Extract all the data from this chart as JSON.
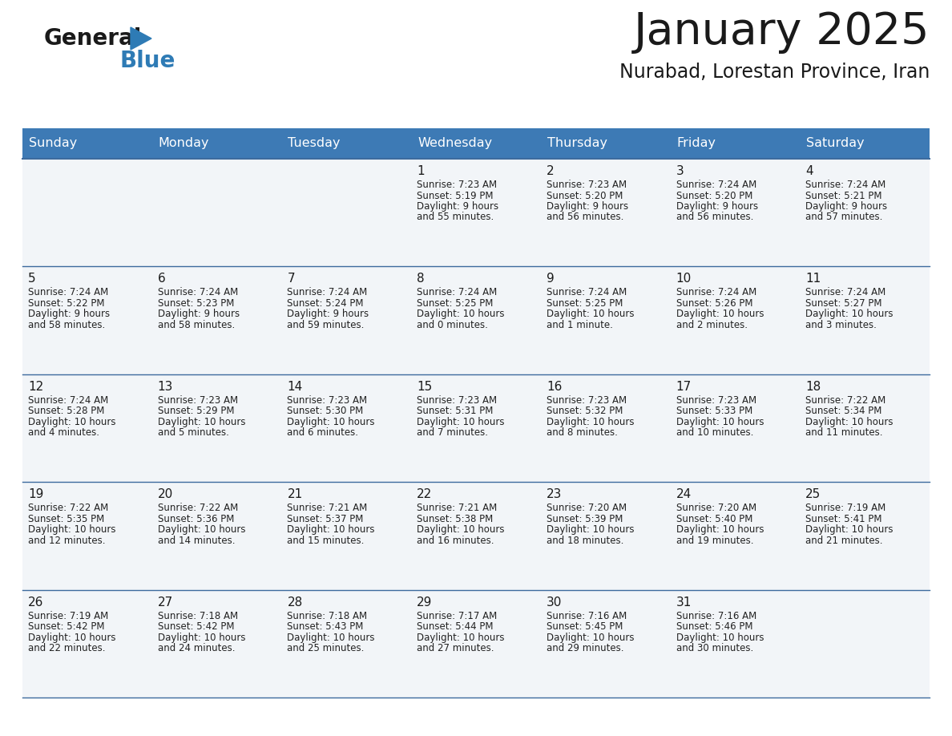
{
  "title": "January 2025",
  "subtitle": "Nurabad, Lorestan Province, Iran",
  "header_color": "#3d7ab5",
  "header_text_color": "#ffffff",
  "cell_bg": "#f2f5f8",
  "grid_line_color": "#3d6b9e",
  "day_headers": [
    "Sunday",
    "Monday",
    "Tuesday",
    "Wednesday",
    "Thursday",
    "Friday",
    "Saturday"
  ],
  "days": [
    {
      "day": 1,
      "col": 3,
      "row": 0,
      "sunrise": "7:23 AM",
      "sunset": "5:19 PM",
      "daylight": "9 hours\nand 55 minutes."
    },
    {
      "day": 2,
      "col": 4,
      "row": 0,
      "sunrise": "7:23 AM",
      "sunset": "5:20 PM",
      "daylight": "9 hours\nand 56 minutes."
    },
    {
      "day": 3,
      "col": 5,
      "row": 0,
      "sunrise": "7:24 AM",
      "sunset": "5:20 PM",
      "daylight": "9 hours\nand 56 minutes."
    },
    {
      "day": 4,
      "col": 6,
      "row": 0,
      "sunrise": "7:24 AM",
      "sunset": "5:21 PM",
      "daylight": "9 hours\nand 57 minutes."
    },
    {
      "day": 5,
      "col": 0,
      "row": 1,
      "sunrise": "7:24 AM",
      "sunset": "5:22 PM",
      "daylight": "9 hours\nand 58 minutes."
    },
    {
      "day": 6,
      "col": 1,
      "row": 1,
      "sunrise": "7:24 AM",
      "sunset": "5:23 PM",
      "daylight": "9 hours\nand 58 minutes."
    },
    {
      "day": 7,
      "col": 2,
      "row": 1,
      "sunrise": "7:24 AM",
      "sunset": "5:24 PM",
      "daylight": "9 hours\nand 59 minutes."
    },
    {
      "day": 8,
      "col": 3,
      "row": 1,
      "sunrise": "7:24 AM",
      "sunset": "5:25 PM",
      "daylight": "10 hours\nand 0 minutes."
    },
    {
      "day": 9,
      "col": 4,
      "row": 1,
      "sunrise": "7:24 AM",
      "sunset": "5:25 PM",
      "daylight": "10 hours\nand 1 minute."
    },
    {
      "day": 10,
      "col": 5,
      "row": 1,
      "sunrise": "7:24 AM",
      "sunset": "5:26 PM",
      "daylight": "10 hours\nand 2 minutes."
    },
    {
      "day": 11,
      "col": 6,
      "row": 1,
      "sunrise": "7:24 AM",
      "sunset": "5:27 PM",
      "daylight": "10 hours\nand 3 minutes."
    },
    {
      "day": 12,
      "col": 0,
      "row": 2,
      "sunrise": "7:24 AM",
      "sunset": "5:28 PM",
      "daylight": "10 hours\nand 4 minutes."
    },
    {
      "day": 13,
      "col": 1,
      "row": 2,
      "sunrise": "7:23 AM",
      "sunset": "5:29 PM",
      "daylight": "10 hours\nand 5 minutes."
    },
    {
      "day": 14,
      "col": 2,
      "row": 2,
      "sunrise": "7:23 AM",
      "sunset": "5:30 PM",
      "daylight": "10 hours\nand 6 minutes."
    },
    {
      "day": 15,
      "col": 3,
      "row": 2,
      "sunrise": "7:23 AM",
      "sunset": "5:31 PM",
      "daylight": "10 hours\nand 7 minutes."
    },
    {
      "day": 16,
      "col": 4,
      "row": 2,
      "sunrise": "7:23 AM",
      "sunset": "5:32 PM",
      "daylight": "10 hours\nand 8 minutes."
    },
    {
      "day": 17,
      "col": 5,
      "row": 2,
      "sunrise": "7:23 AM",
      "sunset": "5:33 PM",
      "daylight": "10 hours\nand 10 minutes."
    },
    {
      "day": 18,
      "col": 6,
      "row": 2,
      "sunrise": "7:22 AM",
      "sunset": "5:34 PM",
      "daylight": "10 hours\nand 11 minutes."
    },
    {
      "day": 19,
      "col": 0,
      "row": 3,
      "sunrise": "7:22 AM",
      "sunset": "5:35 PM",
      "daylight": "10 hours\nand 12 minutes."
    },
    {
      "day": 20,
      "col": 1,
      "row": 3,
      "sunrise": "7:22 AM",
      "sunset": "5:36 PM",
      "daylight": "10 hours\nand 14 minutes."
    },
    {
      "day": 21,
      "col": 2,
      "row": 3,
      "sunrise": "7:21 AM",
      "sunset": "5:37 PM",
      "daylight": "10 hours\nand 15 minutes."
    },
    {
      "day": 22,
      "col": 3,
      "row": 3,
      "sunrise": "7:21 AM",
      "sunset": "5:38 PM",
      "daylight": "10 hours\nand 16 minutes."
    },
    {
      "day": 23,
      "col": 4,
      "row": 3,
      "sunrise": "7:20 AM",
      "sunset": "5:39 PM",
      "daylight": "10 hours\nand 18 minutes."
    },
    {
      "day": 24,
      "col": 5,
      "row": 3,
      "sunrise": "7:20 AM",
      "sunset": "5:40 PM",
      "daylight": "10 hours\nand 19 minutes."
    },
    {
      "day": 25,
      "col": 6,
      "row": 3,
      "sunrise": "7:19 AM",
      "sunset": "5:41 PM",
      "daylight": "10 hours\nand 21 minutes."
    },
    {
      "day": 26,
      "col": 0,
      "row": 4,
      "sunrise": "7:19 AM",
      "sunset": "5:42 PM",
      "daylight": "10 hours\nand 22 minutes."
    },
    {
      "day": 27,
      "col": 1,
      "row": 4,
      "sunrise": "7:18 AM",
      "sunset": "5:42 PM",
      "daylight": "10 hours\nand 24 minutes."
    },
    {
      "day": 28,
      "col": 2,
      "row": 4,
      "sunrise": "7:18 AM",
      "sunset": "5:43 PM",
      "daylight": "10 hours\nand 25 minutes."
    },
    {
      "day": 29,
      "col": 3,
      "row": 4,
      "sunrise": "7:17 AM",
      "sunset": "5:44 PM",
      "daylight": "10 hours\nand 27 minutes."
    },
    {
      "day": 30,
      "col": 4,
      "row": 4,
      "sunrise": "7:16 AM",
      "sunset": "5:45 PM",
      "daylight": "10 hours\nand 29 minutes."
    },
    {
      "day": 31,
      "col": 5,
      "row": 4,
      "sunrise": "7:16 AM",
      "sunset": "5:46 PM",
      "daylight": "10 hours\nand 30 minutes."
    }
  ],
  "logo_general_color": "#1a1a1a",
  "logo_blue_color": "#2e7bb5",
  "figsize": [
    11.88,
    9.18
  ],
  "dpi": 100
}
